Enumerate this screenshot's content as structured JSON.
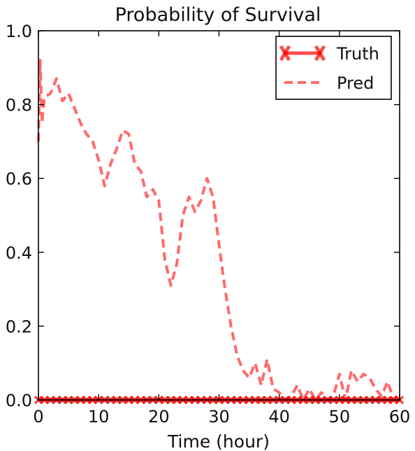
{
  "chart_data": {
    "type": "line",
    "title": "Probability of Survival",
    "xlabel": "Time (hour)",
    "ylabel": "",
    "xlim": [
      0,
      60
    ],
    "ylim": [
      0,
      1.0
    ],
    "x_ticks": [
      "0",
      "10",
      "20",
      "30",
      "40",
      "50",
      "60"
    ],
    "y_ticks": [
      "0.0",
      "0.2",
      "0.4",
      "0.6",
      "0.8",
      "1.0"
    ],
    "grid": false,
    "legend_position": "top-right",
    "colors": {
      "truth": "#ff0000",
      "pred": "#ff6b6b"
    },
    "series": [
      {
        "name": "Truth",
        "style": "solid line with x markers",
        "x": [
          0,
          1,
          2,
          3,
          4,
          5,
          6,
          7,
          8,
          9,
          10,
          11,
          12,
          13,
          14,
          15,
          16,
          17,
          18,
          19,
          20,
          21,
          22,
          23,
          24,
          25,
          26,
          27,
          28,
          29,
          30,
          31,
          32,
          33,
          34,
          35,
          36,
          37,
          38,
          39,
          40,
          41,
          42,
          43,
          44,
          45,
          46,
          47,
          48,
          49,
          50,
          51,
          52,
          53,
          54,
          55,
          56,
          57,
          58,
          59,
          60
        ],
        "values": [
          0,
          0,
          0,
          0,
          0,
          0,
          0,
          0,
          0,
          0,
          0,
          0,
          0,
          0,
          0,
          0,
          0,
          0,
          0,
          0,
          0,
          0,
          0,
          0,
          0,
          0,
          0,
          0,
          0,
          0,
          0,
          0,
          0,
          0,
          0,
          0,
          0,
          0,
          0,
          0,
          0,
          0,
          0,
          0,
          0,
          0,
          0,
          0,
          0,
          0,
          0,
          0,
          0,
          0,
          0,
          0,
          0,
          0,
          0,
          0,
          0
        ]
      },
      {
        "name": "Pred",
        "style": "dashed line",
        "x": [
          0,
          0.3,
          0.6,
          1,
          2,
          3,
          4,
          5,
          6,
          7,
          8,
          9,
          10,
          11,
          12,
          13,
          14,
          15,
          16,
          17,
          18,
          19,
          20,
          21,
          22,
          23,
          24,
          25,
          26,
          27,
          28,
          29,
          30,
          31,
          32,
          33,
          34,
          35,
          36,
          37,
          38,
          39,
          40,
          41,
          42,
          43,
          44,
          45,
          46,
          47,
          48,
          49,
          50,
          51,
          52,
          53,
          54,
          55,
          56,
          57,
          58,
          59,
          60
        ],
        "values": [
          0.7,
          0.92,
          0.75,
          0.82,
          0.83,
          0.87,
          0.81,
          0.83,
          0.79,
          0.75,
          0.72,
          0.7,
          0.65,
          0.58,
          0.64,
          0.68,
          0.73,
          0.72,
          0.64,
          0.62,
          0.55,
          0.57,
          0.54,
          0.38,
          0.31,
          0.37,
          0.5,
          0.55,
          0.51,
          0.54,
          0.6,
          0.55,
          0.42,
          0.3,
          0.2,
          0.12,
          0.08,
          0.06,
          0.1,
          0.04,
          0.11,
          0.03,
          0.02,
          0.0,
          0.01,
          0.04,
          0.0,
          0.03,
          0.0,
          0.02,
          0.0,
          0.01,
          0.07,
          0.0,
          0.08,
          0.05,
          0.07,
          0.06,
          0.03,
          0.01,
          0.05,
          0.0,
          0.02
        ]
      }
    ]
  }
}
